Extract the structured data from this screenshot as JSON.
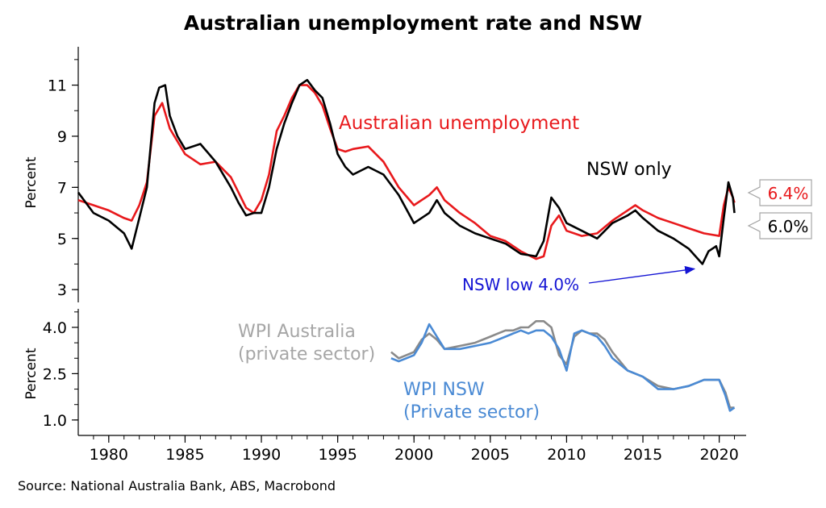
{
  "title": "Australian unemployment rate and NSW",
  "source": "Source: National Australia Bank, ABS, Macrobond",
  "colors": {
    "australia": "#e8191c",
    "nsw": "#000000",
    "annotation": "#1414d4",
    "wpi_australia": "#8a8a8a",
    "wpi_nsw": "#4a8ad4",
    "wpi_australia_label": "#a6a6a6"
  },
  "chart_data": [
    {
      "type": "line",
      "ylabel": "Percent",
      "xlim": [
        1978,
        2021.5
      ],
      "ylim": [
        2.5,
        12.5
      ],
      "yticks": [
        3,
        5,
        7,
        9,
        11
      ],
      "series": [
        {
          "name": "Australian unemployment",
          "label_text": "Australian unemployment",
          "x": [
            1978.0,
            1979.0,
            1980.0,
            1981.0,
            1981.5,
            1982.0,
            1982.5,
            1983.0,
            1983.5,
            1984.0,
            1984.5,
            1985.0,
            1986.0,
            1987.0,
            1988.0,
            1988.5,
            1989.0,
            1989.5,
            1990.0,
            1990.5,
            1991.0,
            1991.5,
            1992.0,
            1992.5,
            1993.0,
            1993.5,
            1994.0,
            1994.5,
            1995.0,
            1995.5,
            1996.0,
            1997.0,
            1998.0,
            1999.0,
            2000.0,
            2001.0,
            2001.5,
            2002.0,
            2003.0,
            2004.0,
            2005.0,
            2006.0,
            2007.0,
            2008.0,
            2008.5,
            2009.0,
            2009.5,
            2010.0,
            2011.0,
            2012.0,
            2013.0,
            2014.0,
            2014.5,
            2015.0,
            2016.0,
            2017.0,
            2018.0,
            2019.0,
            2020.0,
            2020.3,
            2020.6,
            2020.9,
            2021.0
          ],
          "y": [
            6.5,
            6.3,
            6.1,
            5.8,
            5.7,
            6.3,
            7.2,
            9.8,
            10.3,
            9.3,
            8.8,
            8.3,
            7.9,
            8.0,
            7.4,
            6.8,
            6.2,
            6.0,
            6.5,
            7.5,
            9.2,
            9.8,
            10.5,
            11.0,
            11.0,
            10.7,
            10.2,
            9.3,
            8.5,
            8.4,
            8.5,
            8.6,
            8.0,
            7.0,
            6.3,
            6.7,
            7.0,
            6.5,
            6.0,
            5.6,
            5.1,
            4.9,
            4.5,
            4.2,
            4.3,
            5.5,
            5.9,
            5.3,
            5.1,
            5.2,
            5.7,
            6.1,
            6.3,
            6.1,
            5.8,
            5.6,
            5.4,
            5.2,
            5.1,
            6.3,
            7.0,
            6.6,
            6.4
          ]
        },
        {
          "name": "NSW only",
          "label_text": "NSW only",
          "x": [
            1978.0,
            1979.0,
            1980.0,
            1981.0,
            1981.5,
            1982.0,
            1982.5,
            1983.0,
            1983.3,
            1983.7,
            1984.0,
            1984.5,
            1985.0,
            1986.0,
            1987.0,
            1988.0,
            1988.5,
            1989.0,
            1989.5,
            1990.0,
            1990.5,
            1991.0,
            1991.5,
            1992.0,
            1992.5,
            1993.0,
            1993.5,
            1994.0,
            1994.5,
            1995.0,
            1995.5,
            1996.0,
            1997.0,
            1998.0,
            1999.0,
            2000.0,
            2001.0,
            2001.5,
            2002.0,
            2003.0,
            2004.0,
            2005.0,
            2006.0,
            2007.0,
            2008.0,
            2008.5,
            2009.0,
            2009.5,
            2010.0,
            2011.0,
            2012.0,
            2013.0,
            2014.0,
            2014.5,
            2015.0,
            2016.0,
            2017.0,
            2018.0,
            2018.9,
            2019.3,
            2019.8,
            2020.0,
            2020.3,
            2020.6,
            2020.9,
            2021.0
          ],
          "y": [
            6.8,
            6.0,
            5.7,
            5.2,
            4.6,
            5.8,
            7.0,
            10.3,
            10.9,
            11.0,
            9.8,
            9.0,
            8.5,
            8.7,
            8.0,
            7.0,
            6.4,
            5.9,
            6.0,
            6.0,
            7.0,
            8.5,
            9.5,
            10.3,
            11.0,
            11.2,
            10.8,
            10.5,
            9.5,
            8.3,
            7.8,
            7.5,
            7.8,
            7.5,
            6.7,
            5.6,
            6.0,
            6.5,
            6.0,
            5.5,
            5.2,
            5.0,
            4.8,
            4.4,
            4.3,
            4.9,
            6.6,
            6.2,
            5.6,
            5.3,
            5.0,
            5.6,
            5.9,
            6.1,
            5.8,
            5.3,
            5.0,
            4.6,
            4.0,
            4.5,
            4.7,
            4.3,
            5.8,
            7.2,
            6.6,
            6.0
          ]
        }
      ],
      "annotations": [
        {
          "text": "NSW low 4.0%",
          "x": 2018.9,
          "y": 4.0
        }
      ],
      "end_labels": [
        {
          "text": "6.4%",
          "series": "Australian unemployment"
        },
        {
          "text": "6.0%",
          "series": "NSW only"
        }
      ]
    },
    {
      "type": "line",
      "ylabel": "Percent",
      "xlim": [
        1978,
        2021.5
      ],
      "ylim": [
        0.5,
        4.6
      ],
      "yticks": [
        1.0,
        2.5,
        4.0
      ],
      "xticks": [
        1980,
        1985,
        1990,
        1995,
        2000,
        2005,
        2010,
        2015,
        2020
      ],
      "series": [
        {
          "name": "WPI Australia (private sector)",
          "label_lines": [
            "WPI Australia",
            "(private sector)"
          ],
          "x": [
            1998.5,
            1999.0,
            1999.5,
            2000.0,
            2000.5,
            2001.0,
            2001.5,
            2002.0,
            2003.0,
            2004.0,
            2005.0,
            2005.5,
            2006.0,
            2006.5,
            2007.0,
            2007.5,
            2008.0,
            2008.5,
            2009.0,
            2009.5,
            2010.0,
            2010.5,
            2011.0,
            2011.5,
            2012.0,
            2012.5,
            2013.0,
            2013.5,
            2014.0,
            2015.0,
            2016.0,
            2017.0,
            2018.0,
            2019.0,
            2020.0,
            2020.4,
            2020.7,
            2021.0
          ],
          "y": [
            3.2,
            3.0,
            3.1,
            3.2,
            3.6,
            3.8,
            3.6,
            3.3,
            3.4,
            3.5,
            3.7,
            3.8,
            3.9,
            3.9,
            4.0,
            4.0,
            4.2,
            4.2,
            4.0,
            3.1,
            2.8,
            3.7,
            3.9,
            3.8,
            3.8,
            3.6,
            3.2,
            2.9,
            2.6,
            2.4,
            2.1,
            2.0,
            2.1,
            2.3,
            2.3,
            1.9,
            1.4,
            1.4
          ]
        },
        {
          "name": "WPI NSW (Private sector)",
          "label_lines": [
            "WPI NSW",
            "(Private sector)"
          ],
          "x": [
            1998.5,
            1999.0,
            1999.5,
            2000.0,
            2000.5,
            2001.0,
            2001.5,
            2002.0,
            2003.0,
            2004.0,
            2005.0,
            2005.5,
            2006.0,
            2006.5,
            2007.0,
            2007.5,
            2008.0,
            2008.5,
            2009.0,
            2009.5,
            2010.0,
            2010.5,
            2011.0,
            2011.5,
            2012.0,
            2012.5,
            2013.0,
            2013.5,
            2014.0,
            2015.0,
            2016.0,
            2017.0,
            2018.0,
            2019.0,
            2020.0,
            2020.4,
            2020.7,
            2021.0
          ],
          "y": [
            3.0,
            2.9,
            3.0,
            3.1,
            3.5,
            4.1,
            3.7,
            3.3,
            3.3,
            3.4,
            3.5,
            3.6,
            3.7,
            3.8,
            3.9,
            3.8,
            3.9,
            3.9,
            3.7,
            3.3,
            2.6,
            3.8,
            3.9,
            3.8,
            3.7,
            3.4,
            3.0,
            2.8,
            2.6,
            2.4,
            2.0,
            2.0,
            2.1,
            2.3,
            2.3,
            1.8,
            1.3,
            1.4
          ]
        }
      ]
    }
  ]
}
